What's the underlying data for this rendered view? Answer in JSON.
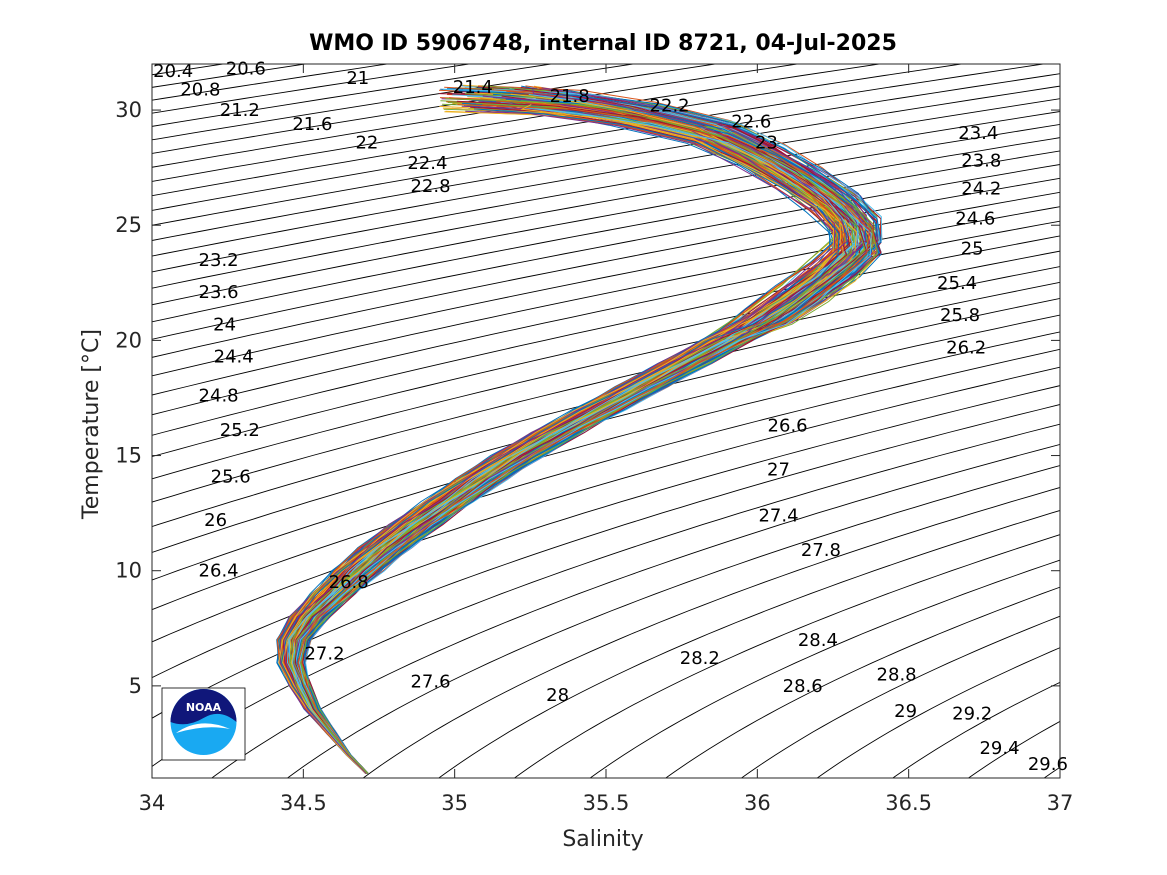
{
  "chart_data": {
    "type": "line",
    "title": "WMO ID 5906748, internal ID 8721, 04-Jul-2025",
    "xlabel": "Salinity",
    "ylabel": "Temperature [°C]",
    "xlim": [
      34,
      37
    ],
    "ylim": [
      1.0,
      32.0
    ],
    "xticks": [
      34,
      34.5,
      35,
      35.5,
      36,
      36.5,
      37
    ],
    "xtick_labels": [
      "34",
      "34.5",
      "35",
      "35.5",
      "36",
      "36.5",
      "37"
    ],
    "yticks": [
      5,
      10,
      15,
      20,
      25,
      30
    ],
    "ytick_labels": [
      "5",
      "10",
      "15",
      "20",
      "25",
      "30"
    ],
    "grid": false,
    "legend": "none",
    "isopycnal_step": 0.2,
    "isopycnal_range": [
      20.2,
      29.8
    ],
    "isopycnal_labels": [
      {
        "t": "20.4",
        "x": 34.07,
        "y": 31.7
      },
      {
        "t": "20.6",
        "x": 34.31,
        "y": 31.8
      },
      {
        "t": "20.8",
        "x": 34.16,
        "y": 30.9
      },
      {
        "t": "21",
        "x": 34.68,
        "y": 31.4
      },
      {
        "t": "21.2",
        "x": 34.29,
        "y": 30.0
      },
      {
        "t": "21.4",
        "x": 35.06,
        "y": 31.0
      },
      {
        "t": "21.6",
        "x": 34.53,
        "y": 29.4
      },
      {
        "t": "21.8",
        "x": 35.38,
        "y": 30.6
      },
      {
        "t": "22",
        "x": 34.71,
        "y": 28.6
      },
      {
        "t": "22.2",
        "x": 35.71,
        "y": 30.2
      },
      {
        "t": "22.4",
        "x": 34.91,
        "y": 27.7
      },
      {
        "t": "22.6",
        "x": 35.98,
        "y": 29.5
      },
      {
        "t": "22.8",
        "x": 34.92,
        "y": 26.7
      },
      {
        "t": "23",
        "x": 36.03,
        "y": 28.6
      },
      {
        "t": "23.2",
        "x": 34.22,
        "y": 23.5
      },
      {
        "t": "23.4",
        "x": 36.73,
        "y": 29.0
      },
      {
        "t": "23.6",
        "x": 34.22,
        "y": 22.1
      },
      {
        "t": "23.8",
        "x": 36.74,
        "y": 27.8
      },
      {
        "t": "24",
        "x": 34.24,
        "y": 20.7
      },
      {
        "t": "24.2",
        "x": 36.74,
        "y": 26.6
      },
      {
        "t": "24.4",
        "x": 34.27,
        "y": 19.3
      },
      {
        "t": "24.6",
        "x": 36.72,
        "y": 25.3
      },
      {
        "t": "24.8",
        "x": 34.22,
        "y": 17.6
      },
      {
        "t": "25",
        "x": 36.71,
        "y": 24.0
      },
      {
        "t": "25.2",
        "x": 34.29,
        "y": 16.1
      },
      {
        "t": "25.4",
        "x": 36.66,
        "y": 22.5
      },
      {
        "t": "25.6",
        "x": 34.26,
        "y": 14.1
      },
      {
        "t": "25.8",
        "x": 36.67,
        "y": 21.1
      },
      {
        "t": "26",
        "x": 34.21,
        "y": 12.2
      },
      {
        "t": "26.2",
        "x": 36.69,
        "y": 19.7
      },
      {
        "t": "26.4",
        "x": 34.22,
        "y": 10.0
      },
      {
        "t": "26.6",
        "x": 36.1,
        "y": 16.3
      },
      {
        "t": "26.8",
        "x": 34.65,
        "y": 9.5
      },
      {
        "t": "27",
        "x": 36.07,
        "y": 14.4
      },
      {
        "t": "27.2",
        "x": 34.57,
        "y": 6.4
      },
      {
        "t": "27.4",
        "x": 36.07,
        "y": 12.4
      },
      {
        "t": "27.6",
        "x": 34.92,
        "y": 5.2
      },
      {
        "t": "27.8",
        "x": 36.21,
        "y": 10.9
      },
      {
        "t": "28",
        "x": 35.34,
        "y": 4.6
      },
      {
        "t": "28.2",
        "x": 35.81,
        "y": 6.2
      },
      {
        "t": "28.4",
        "x": 36.2,
        "y": 7.0
      },
      {
        "t": "28.6",
        "x": 36.15,
        "y": 5.0
      },
      {
        "t": "28.8",
        "x": 36.46,
        "y": 5.5
      },
      {
        "t": "29",
        "x": 36.49,
        "y": 3.9
      },
      {
        "t": "29.2",
        "x": 36.71,
        "y": 3.8
      },
      {
        "t": "29.4",
        "x": 36.8,
        "y": 2.3
      },
      {
        "t": "29.6",
        "x": 36.96,
        "y": 1.6
      }
    ],
    "profile_count": 180,
    "mean_profile": [
      [
        34.71,
        1.2
      ],
      [
        34.65,
        2.0
      ],
      [
        34.59,
        3.0
      ],
      [
        34.53,
        4.0
      ],
      [
        34.49,
        5.0
      ],
      [
        34.46,
        6.0
      ],
      [
        34.47,
        7.0
      ],
      [
        34.52,
        8.0
      ],
      [
        34.6,
        9.0
      ],
      [
        34.68,
        10.0
      ],
      [
        34.77,
        11.0
      ],
      [
        34.87,
        12.0
      ],
      [
        34.98,
        13.0
      ],
      [
        35.09,
        14.0
      ],
      [
        35.21,
        15.0
      ],
      [
        35.34,
        16.0
      ],
      [
        35.48,
        17.0
      ],
      [
        35.62,
        18.0
      ],
      [
        35.76,
        19.0
      ],
      [
        35.9,
        20.0
      ],
      [
        36.04,
        21.0
      ],
      [
        36.15,
        22.0
      ],
      [
        36.25,
        23.0
      ],
      [
        36.33,
        24.0
      ],
      [
        36.32,
        25.0
      ],
      [
        36.25,
        26.0
      ],
      [
        36.14,
        27.0
      ],
      [
        36.01,
        28.0
      ],
      [
        35.85,
        29.0
      ],
      [
        35.6,
        29.8
      ],
      [
        35.35,
        30.3
      ],
      [
        35.05,
        30.5
      ]
    ]
  },
  "logo": {
    "text": "NOAA",
    "colors": {
      "navy": "#10177a",
      "light_blue": "#19a9f2",
      "white": "#ffffff"
    }
  },
  "colors": {
    "isopycnal": "#000000",
    "axis": "#262626",
    "series_palette": [
      "#0072bd",
      "#d95319",
      "#edb120",
      "#7e2f8e",
      "#77ac30",
      "#4dbeee",
      "#a2142f"
    ]
  }
}
